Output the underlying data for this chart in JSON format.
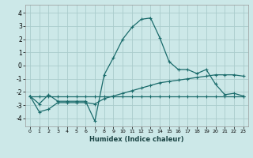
{
  "xlabel": "Humidex (Indice chaleur)",
  "bg_color": "#cce8e8",
  "grid_color": "#aacccc",
  "line_color": "#1a6b6b",
  "xlim": [
    -0.5,
    23.5
  ],
  "ylim": [
    -4.6,
    4.6
  ],
  "xticks": [
    0,
    1,
    2,
    3,
    4,
    5,
    6,
    7,
    8,
    9,
    10,
    11,
    12,
    13,
    14,
    15,
    16,
    17,
    18,
    19,
    20,
    21,
    22,
    23
  ],
  "yticks": [
    -4,
    -3,
    -2,
    -1,
    0,
    1,
    2,
    3,
    4
  ],
  "line_main_x": [
    0,
    1,
    2,
    3,
    4,
    5,
    6,
    7,
    8,
    9,
    10,
    11,
    12,
    13,
    14,
    15,
    16,
    17,
    18,
    19,
    20,
    21,
    22,
    23
  ],
  "line_main_y": [
    -2.3,
    -2.9,
    -2.2,
    -2.7,
    -2.7,
    -2.7,
    -2.7,
    -4.2,
    -0.7,
    0.6,
    2.0,
    2.9,
    3.5,
    3.6,
    2.1,
    0.3,
    -0.3,
    -0.3,
    -0.6,
    -0.3,
    -1.4,
    -2.2,
    -2.1,
    -2.3
  ],
  "line_flat_x": [
    0,
    1,
    2,
    3,
    4,
    5,
    6,
    7,
    8,
    9,
    10,
    11,
    12,
    13,
    14,
    15,
    16,
    17,
    18,
    19,
    20,
    21,
    22,
    23
  ],
  "line_flat_y": [
    -2.3,
    -2.3,
    -2.3,
    -2.3,
    -2.3,
    -2.3,
    -2.3,
    -2.3,
    -2.3,
    -2.3,
    -2.3,
    -2.3,
    -2.3,
    -2.3,
    -2.3,
    -2.3,
    -2.3,
    -2.3,
    -2.3,
    -2.3,
    -2.3,
    -2.3,
    -2.3,
    -2.3
  ],
  "line_rise_x": [
    0,
    1,
    2,
    3,
    4,
    5,
    6,
    7,
    8,
    9,
    10,
    11,
    12,
    13,
    14,
    15,
    16,
    17,
    18,
    19,
    20,
    21,
    22,
    23
  ],
  "line_rise_y": [
    -2.3,
    -3.5,
    -3.3,
    -2.8,
    -2.8,
    -2.8,
    -2.8,
    -2.9,
    -2.5,
    -2.3,
    -2.1,
    -1.9,
    -1.7,
    -1.5,
    -1.3,
    -1.2,
    -1.1,
    -1.0,
    -0.9,
    -0.8,
    -0.7,
    -0.7,
    -0.7,
    -0.8
  ]
}
